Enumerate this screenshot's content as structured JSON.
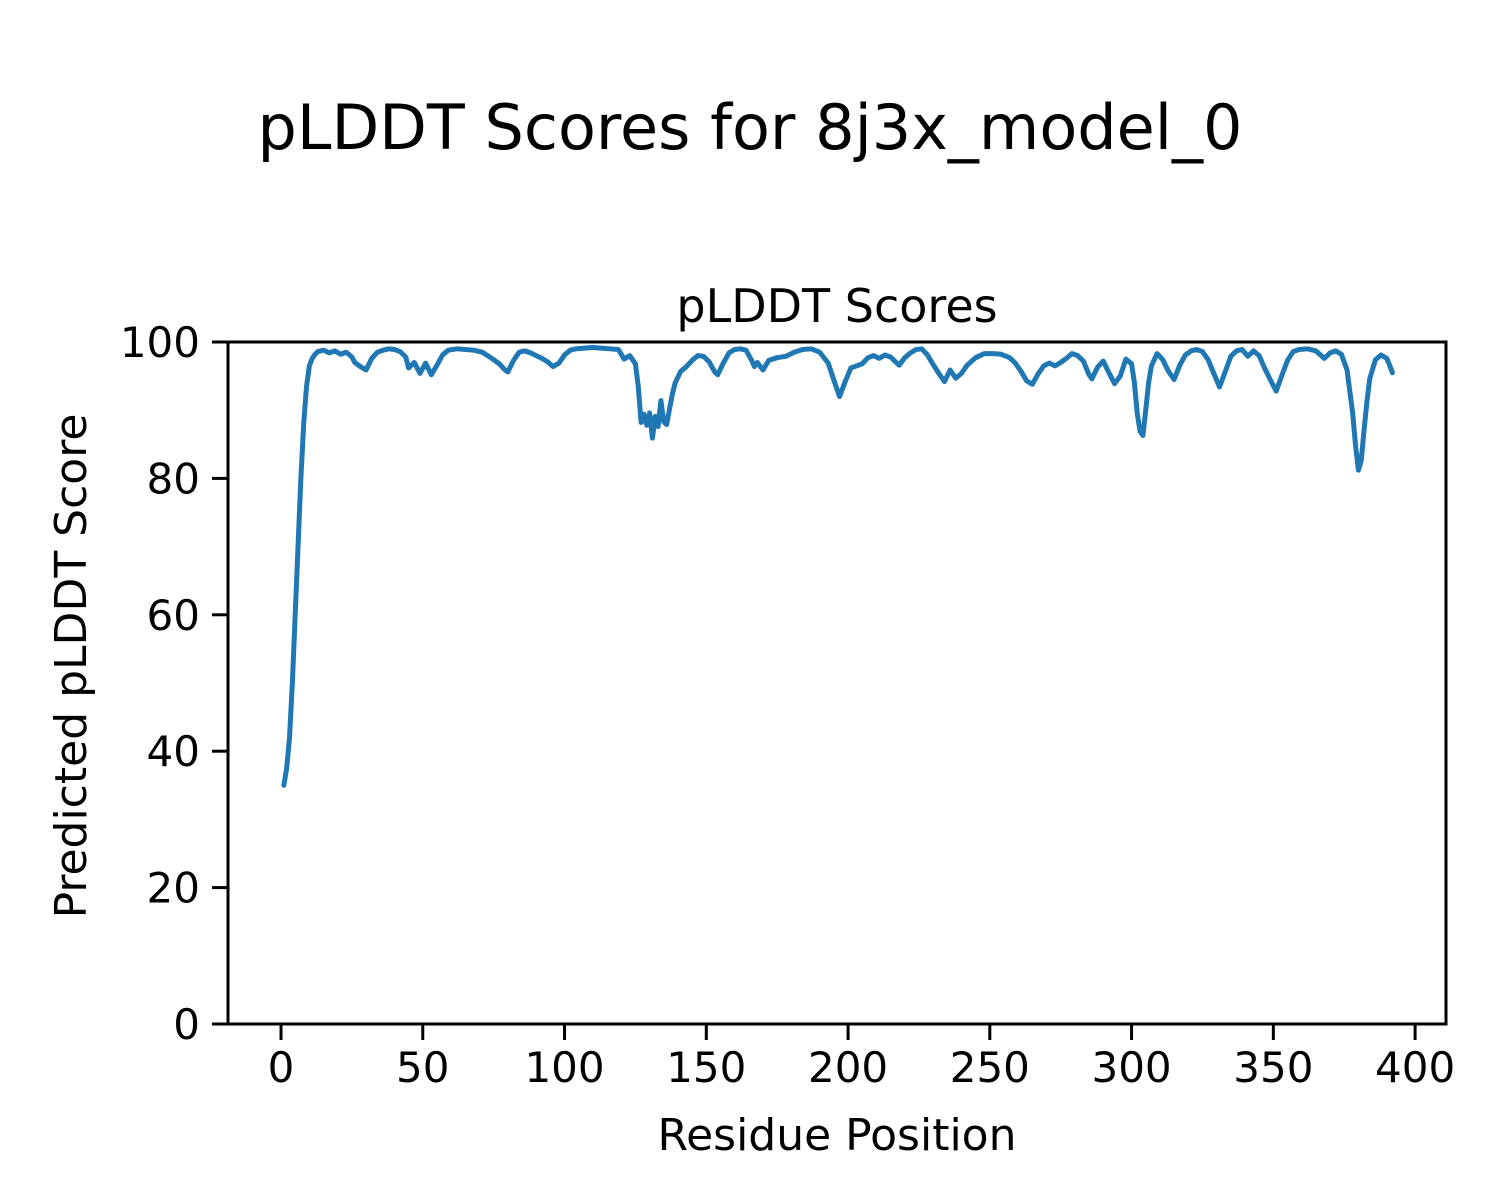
{
  "chart_data": {
    "type": "line",
    "suptitle": "pLDDT Scores for 8j3x_model_0",
    "title": "pLDDT Scores",
    "xlabel": "Residue Position",
    "ylabel": "Predicted pLDDT Score",
    "xlim": [
      -18.7,
      410.9
    ],
    "ylim": [
      0,
      100
    ],
    "xticks": [
      0,
      50,
      100,
      150,
      200,
      250,
      300,
      350,
      400
    ],
    "yticks": [
      0,
      20,
      40,
      60,
      80,
      100
    ],
    "grid": false,
    "legend": false,
    "background": "#ffffff",
    "spine_color": "#000000",
    "line_color": "#1f77b4",
    "line_width": 5,
    "series": [
      {
        "name": "pLDDT",
        "points": [
          [
            1,
            35.0
          ],
          [
            2,
            37.5
          ],
          [
            3,
            42.0
          ],
          [
            4,
            50.0
          ],
          [
            5,
            60.0
          ],
          [
            6,
            70.0
          ],
          [
            7,
            80.0
          ],
          [
            8,
            88.0
          ],
          [
            9,
            93.5
          ],
          [
            10,
            96.5
          ],
          [
            11,
            97.6
          ],
          [
            12,
            98.2
          ],
          [
            13,
            98.6
          ],
          [
            15,
            98.8
          ],
          [
            17,
            98.4
          ],
          [
            19,
            98.7
          ],
          [
            21,
            98.2
          ],
          [
            23,
            98.5
          ],
          [
            25,
            97.8
          ],
          [
            26,
            97.0
          ],
          [
            28,
            96.4
          ],
          [
            30,
            95.9
          ],
          [
            32,
            97.6
          ],
          [
            34,
            98.5
          ],
          [
            36,
            98.8
          ],
          [
            38,
            99.0
          ],
          [
            40,
            98.9
          ],
          [
            42,
            98.6
          ],
          [
            44,
            97.8
          ],
          [
            45,
            96.2
          ],
          [
            47,
            97.0
          ],
          [
            49,
            95.4
          ],
          [
            51,
            96.9
          ],
          [
            53,
            95.2
          ],
          [
            55,
            96.6
          ],
          [
            57,
            98.1
          ],
          [
            59,
            98.8
          ],
          [
            62,
            99.0
          ],
          [
            65,
            98.9
          ],
          [
            68,
            98.8
          ],
          [
            71,
            98.5
          ],
          [
            74,
            97.7
          ],
          [
            77,
            96.8
          ],
          [
            79,
            95.9
          ],
          [
            80,
            95.6
          ],
          [
            82,
            97.3
          ],
          [
            84,
            98.5
          ],
          [
            86,
            98.7
          ],
          [
            88,
            98.4
          ],
          [
            90,
            98.0
          ],
          [
            92,
            97.6
          ],
          [
            94,
            97.1
          ],
          [
            96,
            96.4
          ],
          [
            98,
            96.9
          ],
          [
            100,
            98.1
          ],
          [
            102,
            98.8
          ],
          [
            104,
            99.0
          ],
          [
            107,
            99.1
          ],
          [
            110,
            99.2
          ],
          [
            113,
            99.1
          ],
          [
            116,
            99.0
          ],
          [
            119,
            98.9
          ],
          [
            121,
            97.5
          ],
          [
            123,
            98.0
          ],
          [
            125,
            96.8
          ],
          [
            126,
            93.5
          ],
          [
            127,
            88.2
          ],
          [
            128,
            89.4
          ],
          [
            129,
            87.8
          ],
          [
            130,
            89.6
          ],
          [
            131,
            85.9
          ],
          [
            132,
            89.1
          ],
          [
            133,
            87.6
          ],
          [
            134,
            91.4
          ],
          [
            135,
            88.3
          ],
          [
            136,
            87.9
          ],
          [
            137,
            90.1
          ],
          [
            138,
            92.3
          ],
          [
            139,
            94.0
          ],
          [
            141,
            95.7
          ],
          [
            143,
            96.4
          ],
          [
            145,
            97.3
          ],
          [
            147,
            98.0
          ],
          [
            149,
            97.9
          ],
          [
            151,
            97.1
          ],
          [
            153,
            95.6
          ],
          [
            154,
            95.2
          ],
          [
            156,
            96.9
          ],
          [
            158,
            98.4
          ],
          [
            160,
            98.9
          ],
          [
            162,
            99.0
          ],
          [
            164,
            98.8
          ],
          [
            166,
            97.3
          ],
          [
            167,
            96.4
          ],
          [
            168,
            97.0
          ],
          [
            170,
            95.9
          ],
          [
            172,
            97.3
          ],
          [
            175,
            97.7
          ],
          [
            178,
            97.9
          ],
          [
            181,
            98.5
          ],
          [
            184,
            98.9
          ],
          [
            187,
            99.0
          ],
          [
            190,
            98.5
          ],
          [
            193,
            96.9
          ],
          [
            195,
            94.4
          ],
          [
            197,
            92.0
          ],
          [
            199,
            94.2
          ],
          [
            201,
            96.2
          ],
          [
            203,
            96.5
          ],
          [
            205,
            96.8
          ],
          [
            207,
            97.7
          ],
          [
            209,
            98.0
          ],
          [
            211,
            97.6
          ],
          [
            213,
            98.1
          ],
          [
            215,
            97.8
          ],
          [
            218,
            96.6
          ],
          [
            220,
            97.7
          ],
          [
            222,
            98.4
          ],
          [
            224,
            98.9
          ],
          [
            226,
            99.0
          ],
          [
            228,
            98.1
          ],
          [
            230,
            96.7
          ],
          [
            232,
            95.4
          ],
          [
            234,
            94.2
          ],
          [
            236,
            95.9
          ],
          [
            238,
            94.7
          ],
          [
            240,
            95.4
          ],
          [
            242,
            96.6
          ],
          [
            245,
            97.7
          ],
          [
            248,
            98.3
          ],
          [
            251,
            98.3
          ],
          [
            254,
            98.2
          ],
          [
            257,
            97.7
          ],
          [
            259,
            96.9
          ],
          [
            261,
            95.7
          ],
          [
            263,
            94.3
          ],
          [
            265,
            93.8
          ],
          [
            267,
            95.3
          ],
          [
            269,
            96.5
          ],
          [
            271,
            96.9
          ],
          [
            273,
            96.5
          ],
          [
            275,
            97.0
          ],
          [
            277,
            97.6
          ],
          [
            279,
            98.3
          ],
          [
            281,
            98.0
          ],
          [
            283,
            97.2
          ],
          [
            285,
            95.2
          ],
          [
            286,
            94.6
          ],
          [
            288,
            96.3
          ],
          [
            290,
            97.2
          ],
          [
            292,
            95.5
          ],
          [
            294,
            93.9
          ],
          [
            296,
            95.0
          ],
          [
            298,
            97.5
          ],
          [
            300,
            96.8
          ],
          [
            301,
            94.0
          ],
          [
            302,
            89.5
          ],
          [
            303,
            86.9
          ],
          [
            304,
            86.3
          ],
          [
            305,
            90.0
          ],
          [
            306,
            94.0
          ],
          [
            307,
            96.5
          ],
          [
            309,
            98.3
          ],
          [
            311,
            97.4
          ],
          [
            313,
            95.7
          ],
          [
            315,
            94.5
          ],
          [
            317,
            96.6
          ],
          [
            319,
            98.1
          ],
          [
            321,
            98.7
          ],
          [
            323,
            98.9
          ],
          [
            325,
            98.6
          ],
          [
            327,
            97.4
          ],
          [
            329,
            95.4
          ],
          [
            331,
            93.4
          ],
          [
            333,
            95.6
          ],
          [
            335,
            97.9
          ],
          [
            337,
            98.7
          ],
          [
            339,
            98.9
          ],
          [
            341,
            97.9
          ],
          [
            343,
            98.7
          ],
          [
            345,
            98.0
          ],
          [
            347,
            96.1
          ],
          [
            349,
            94.4
          ],
          [
            351,
            92.8
          ],
          [
            353,
            95.1
          ],
          [
            355,
            97.3
          ],
          [
            357,
            98.6
          ],
          [
            359,
            98.9
          ],
          [
            362,
            99.0
          ],
          [
            365,
            98.7
          ],
          [
            368,
            97.6
          ],
          [
            370,
            98.4
          ],
          [
            372,
            98.7
          ],
          [
            374,
            98.2
          ],
          [
            376,
            95.9
          ],
          [
            378,
            89.5
          ],
          [
            379,
            84.8
          ],
          [
            380,
            81.2
          ],
          [
            381,
            82.6
          ],
          [
            382,
            87.1
          ],
          [
            383,
            91.2
          ],
          [
            384,
            94.6
          ],
          [
            386,
            97.4
          ],
          [
            388,
            98.1
          ],
          [
            390,
            97.6
          ],
          [
            391,
            96.6
          ],
          [
            392,
            95.5
          ]
        ]
      }
    ]
  }
}
